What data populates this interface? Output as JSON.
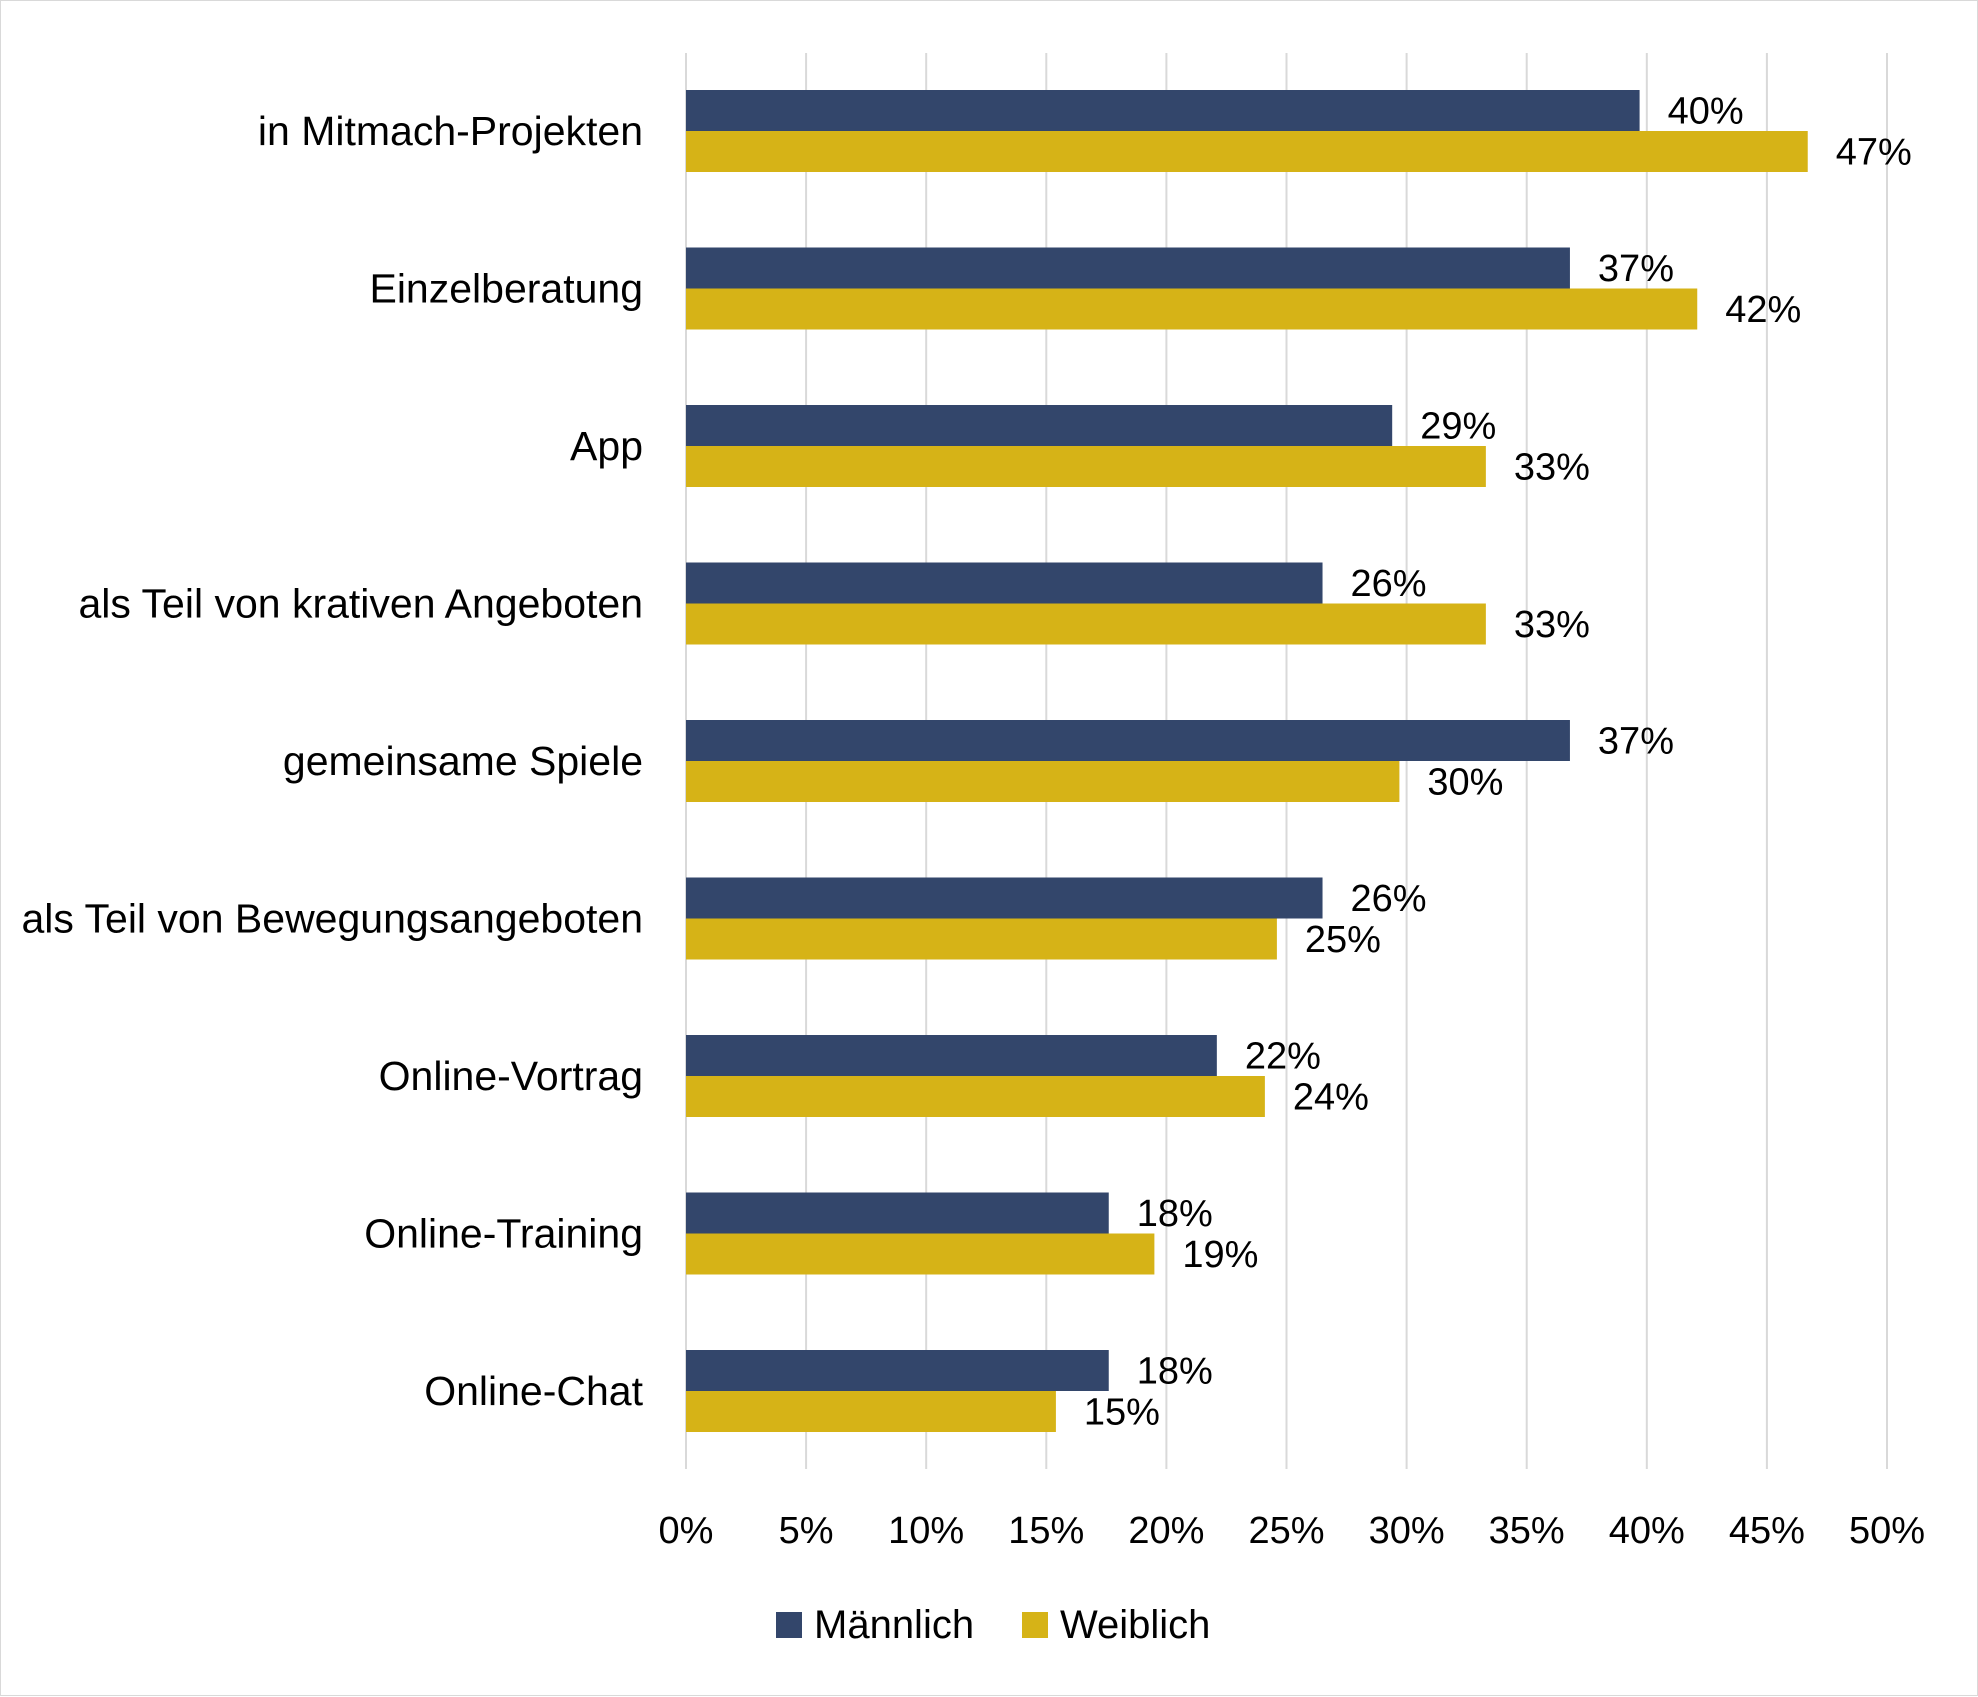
{
  "chart_data": {
    "type": "bar",
    "orientation": "horizontal",
    "categories": [
      "in Mitmach-Projekten",
      "Einzelberatung",
      "App",
      "als Teil von krativen Angeboten",
      "gemeinsame Spiele",
      "als Teil von Bewegungsangeboten",
      "Online-Vortrag",
      "Online-Training",
      "Online-Chat"
    ],
    "series": [
      {
        "name": "Männlich",
        "color": "#33466b",
        "values": [
          39.7,
          36.8,
          29.4,
          26.5,
          36.8,
          26.5,
          22.1,
          17.6,
          17.6
        ],
        "labels": [
          "40%",
          "37%",
          "29%",
          "26%",
          "37%",
          "26%",
          "22%",
          "18%",
          "18%"
        ]
      },
      {
        "name": "Weiblich",
        "color": "#d6b317",
        "values": [
          46.7,
          42.1,
          33.3,
          33.3,
          29.7,
          24.6,
          24.1,
          19.5,
          15.4
        ],
        "labels": [
          "47%",
          "42%",
          "33%",
          "33%",
          "30%",
          "25%",
          "24%",
          "19%",
          "15%"
        ]
      }
    ],
    "xlim": [
      0,
      50
    ],
    "xticks": [
      0,
      5,
      10,
      15,
      20,
      25,
      30,
      35,
      40,
      45,
      50
    ],
    "xtick_labels": [
      "0%",
      "5%",
      "10%",
      "15%",
      "20%",
      "25%",
      "30%",
      "35%",
      "40%",
      "45%",
      "50%"
    ],
    "grid": "vertical",
    "legend_position": "bottom"
  }
}
